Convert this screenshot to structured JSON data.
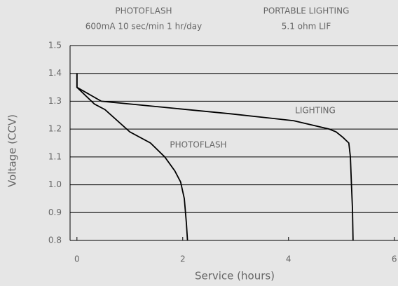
{
  "chart_data": {
    "type": "line",
    "annotations": [
      "PHOTOFLASH",
      "600mA 10 sec/min 1 hr/day",
      "PORTABLE LIGHTING",
      "5.1 ohm LIF"
    ],
    "xlabel": "Service (hours)",
    "ylabel": "Voltage (CCV)",
    "series": [
      {
        "name": "PHOTOFLASH",
        "color": "#000000",
        "x": [
          0,
          0,
          0.33,
          0.53,
          1.0,
          1.39,
          1.66,
          1.85,
          1.96,
          2.03,
          2.07,
          2.09
        ],
        "values": [
          1.4,
          1.35,
          1.29,
          1.27,
          1.19,
          1.15,
          1.1,
          1.05,
          1.01,
          0.95,
          0.86,
          0.8
        ]
      },
      {
        "name": "LIGHTING",
        "color": "#000000",
        "x": [
          0,
          0,
          0.46,
          2.9,
          4.1,
          4.77,
          4.9,
          5.03,
          5.14,
          5.17,
          5.19,
          5.21,
          5.22
        ],
        "values": [
          1.4,
          1.35,
          1.3,
          1.255,
          1.23,
          1.2,
          1.19,
          1.17,
          1.15,
          1.1,
          1.0,
          0.91,
          0.8
        ]
      }
    ],
    "xlim": [
      -0.13,
      6.07
    ],
    "xticks": [
      0,
      2,
      4,
      6
    ],
    "ylim": [
      0.8,
      1.5
    ],
    "yticks": [
      {
        "value": 0.8,
        "label": "0.8"
      },
      {
        "value": 0.9,
        "label": "0.9"
      },
      {
        "value": 1.0,
        "label": "1.0"
      },
      {
        "value": 1.1,
        "label": "1.1"
      },
      {
        "value": 1.2,
        "label": "1.2"
      },
      {
        "value": 1.3,
        "label": "1.3"
      },
      {
        "value": 1.4,
        "label": "1.4"
      },
      {
        "value": 1.5,
        "label": "1.5"
      }
    ],
    "grid": true
  }
}
